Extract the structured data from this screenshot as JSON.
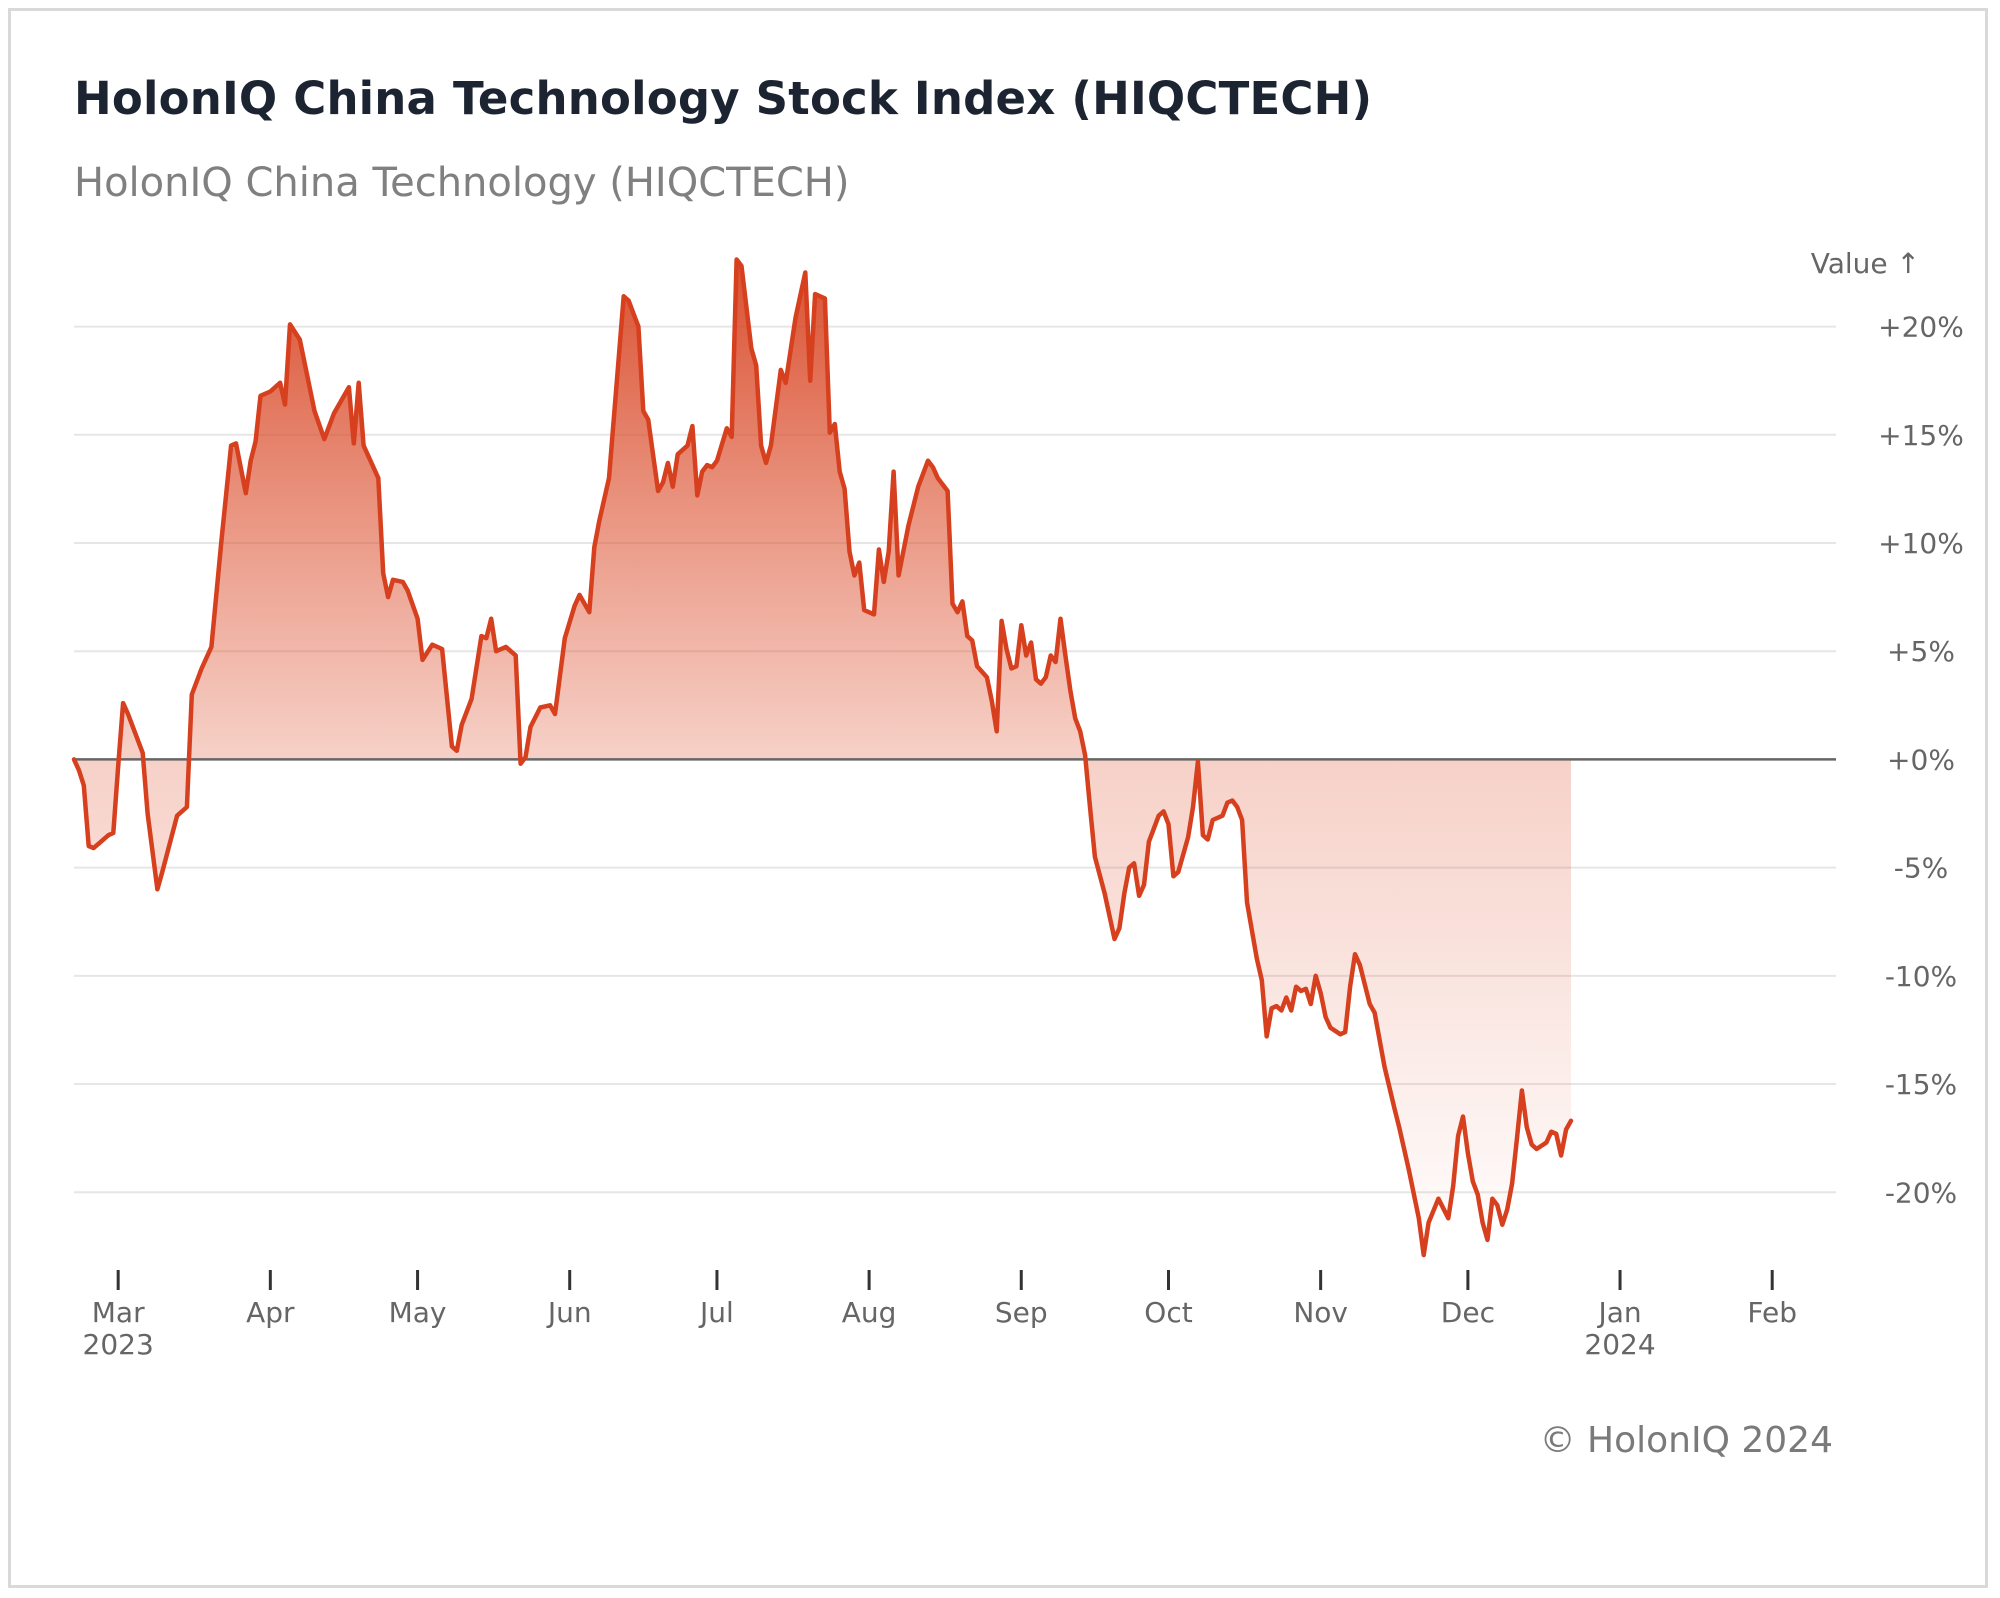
{
  "header": {
    "title": "HolonIQ China Technology Stock Index (HIQCTECH)",
    "subtitle": "HolonIQ China Technology (HIQCTECH)"
  },
  "footer": {
    "copyright": "© HolonIQ 2024"
  },
  "colors": {
    "line": "#d6401e",
    "fill": "#e05a3a",
    "baseline": "#666666",
    "grid": "#e6e6e6"
  },
  "chart_data": {
    "type": "area",
    "title": "HolonIQ China Technology Stock Index (HIQCTECH)",
    "subtitle": "HolonIQ China Technology (HIQCTECH)",
    "ylabel": "Value ↑",
    "y_tick_labels": [
      "+20%",
      "+15%",
      "+10%",
      "+5%",
      "+0%",
      "-5%",
      "-10%",
      "-15%",
      "-20%"
    ],
    "y_ticks": [
      20,
      15,
      10,
      5,
      0,
      -5,
      -10,
      -15,
      -20
    ],
    "ylim": [
      -23.5,
      24
    ],
    "x_ticks": [
      {
        "date": "2023-03-01",
        "label": "Mar",
        "sub": "2023"
      },
      {
        "date": "2023-04-01",
        "label": "Apr",
        "sub": ""
      },
      {
        "date": "2023-05-01",
        "label": "May",
        "sub": ""
      },
      {
        "date": "2023-06-01",
        "label": "Jun",
        "sub": ""
      },
      {
        "date": "2023-07-01",
        "label": "Jul",
        "sub": ""
      },
      {
        "date": "2023-08-01",
        "label": "Aug",
        "sub": ""
      },
      {
        "date": "2023-09-01",
        "label": "Sep",
        "sub": ""
      },
      {
        "date": "2023-10-01",
        "label": "Oct",
        "sub": ""
      },
      {
        "date": "2023-11-01",
        "label": "Nov",
        "sub": ""
      },
      {
        "date": "2023-12-01",
        "label": "Dec",
        "sub": ""
      },
      {
        "date": "2024-01-01",
        "label": "Jan",
        "sub": "2024"
      },
      {
        "date": "2024-02-01",
        "label": "Feb",
        "sub": ""
      }
    ],
    "xlim": [
      "2023-02-20",
      "2024-02-14"
    ],
    "baseline": 0,
    "grid": true,
    "series": [
      {
        "points": [
          [
            "2023-02-20",
            0.0
          ],
          [
            "2023-02-21",
            -0.5
          ],
          [
            "2023-02-22",
            -1.2
          ],
          [
            "2023-02-23",
            -4.0
          ],
          [
            "2023-02-24",
            -4.1
          ],
          [
            "2023-02-27",
            -3.5
          ],
          [
            "2023-02-28",
            -3.4
          ],
          [
            "2023-03-01",
            -0.3
          ],
          [
            "2023-03-02",
            2.6
          ],
          [
            "2023-03-03",
            2.1
          ],
          [
            "2023-03-06",
            0.3
          ],
          [
            "2023-03-07",
            -2.5
          ],
          [
            "2023-03-09",
            -6.0
          ],
          [
            "2023-03-10",
            -5.2
          ],
          [
            "2023-03-13",
            -2.6
          ],
          [
            "2023-03-15",
            -2.2
          ],
          [
            "2023-03-16",
            3.0
          ],
          [
            "2023-03-18",
            4.2
          ],
          [
            "2023-03-20",
            5.2
          ],
          [
            "2023-03-22",
            10.0
          ],
          [
            "2023-03-24",
            14.5
          ],
          [
            "2023-03-25",
            14.6
          ],
          [
            "2023-03-27",
            12.3
          ],
          [
            "2023-03-28",
            13.8
          ],
          [
            "2023-03-29",
            14.7
          ],
          [
            "2023-03-30",
            16.8
          ],
          [
            "2023-04-01",
            17.0
          ],
          [
            "2023-04-03",
            17.4
          ],
          [
            "2023-04-04",
            16.4
          ],
          [
            "2023-04-05",
            20.1
          ],
          [
            "2023-04-07",
            19.4
          ],
          [
            "2023-04-09",
            17.2
          ],
          [
            "2023-04-10",
            16.1
          ],
          [
            "2023-04-12",
            14.8
          ],
          [
            "2023-04-14",
            16.0
          ],
          [
            "2023-04-17",
            17.2
          ],
          [
            "2023-04-18",
            14.6
          ],
          [
            "2023-04-19",
            17.4
          ],
          [
            "2023-04-20",
            14.5
          ],
          [
            "2023-04-23",
            13.0
          ],
          [
            "2023-04-24",
            8.6
          ],
          [
            "2023-04-25",
            7.5
          ],
          [
            "2023-04-26",
            8.3
          ],
          [
            "2023-04-28",
            8.2
          ],
          [
            "2023-04-29",
            7.8
          ],
          [
            "2023-05-01",
            6.5
          ],
          [
            "2023-05-02",
            4.6
          ],
          [
            "2023-05-04",
            5.3
          ],
          [
            "2023-05-06",
            5.1
          ],
          [
            "2023-05-08",
            0.6
          ],
          [
            "2023-05-09",
            0.4
          ],
          [
            "2023-05-10",
            1.6
          ],
          [
            "2023-05-12",
            2.8
          ],
          [
            "2023-05-14",
            5.7
          ],
          [
            "2023-05-15",
            5.6
          ],
          [
            "2023-05-16",
            6.5
          ],
          [
            "2023-05-17",
            5.0
          ],
          [
            "2023-05-19",
            5.2
          ],
          [
            "2023-05-21",
            4.8
          ],
          [
            "2023-05-22",
            -0.2
          ],
          [
            "2023-05-23",
            0.1
          ],
          [
            "2023-05-24",
            1.5
          ],
          [
            "2023-05-26",
            2.4
          ],
          [
            "2023-05-28",
            2.5
          ],
          [
            "2023-05-29",
            2.1
          ],
          [
            "2023-05-31",
            5.6
          ],
          [
            "2023-06-02",
            7.1
          ],
          [
            "2023-06-03",
            7.6
          ],
          [
            "2023-06-05",
            6.8
          ],
          [
            "2023-06-06",
            9.8
          ],
          [
            "2023-06-07",
            11.0
          ],
          [
            "2023-06-09",
            13.0
          ],
          [
            "2023-06-12",
            21.4
          ],
          [
            "2023-06-13",
            21.2
          ],
          [
            "2023-06-15",
            20.0
          ],
          [
            "2023-06-16",
            16.1
          ],
          [
            "2023-06-17",
            15.7
          ],
          [
            "2023-06-19",
            12.4
          ],
          [
            "2023-06-20",
            12.8
          ],
          [
            "2023-06-21",
            13.7
          ],
          [
            "2023-06-22",
            12.6
          ],
          [
            "2023-06-23",
            14.1
          ],
          [
            "2023-06-25",
            14.5
          ],
          [
            "2023-06-26",
            15.4
          ],
          [
            "2023-06-27",
            12.2
          ],
          [
            "2023-06-28",
            13.3
          ],
          [
            "2023-06-29",
            13.6
          ],
          [
            "2023-06-30",
            13.5
          ],
          [
            "2023-07-01",
            13.8
          ],
          [
            "2023-07-03",
            15.3
          ],
          [
            "2023-07-04",
            14.9
          ],
          [
            "2023-07-05",
            23.1
          ],
          [
            "2023-07-06",
            22.8
          ],
          [
            "2023-07-08",
            19.0
          ],
          [
            "2023-07-09",
            18.2
          ],
          [
            "2023-07-10",
            14.5
          ],
          [
            "2023-07-11",
            13.7
          ],
          [
            "2023-07-12",
            14.5
          ],
          [
            "2023-07-14",
            18.0
          ],
          [
            "2023-07-15",
            17.4
          ],
          [
            "2023-07-17",
            20.4
          ],
          [
            "2023-07-19",
            22.5
          ],
          [
            "2023-07-20",
            17.5
          ],
          [
            "2023-07-21",
            21.5
          ],
          [
            "2023-07-23",
            21.3
          ],
          [
            "2023-07-24",
            15.1
          ],
          [
            "2023-07-25",
            15.5
          ],
          [
            "2023-07-26",
            13.3
          ],
          [
            "2023-07-27",
            12.5
          ],
          [
            "2023-07-28",
            9.6
          ],
          [
            "2023-07-29",
            8.5
          ],
          [
            "2023-07-30",
            9.1
          ],
          [
            "2023-07-31",
            6.9
          ],
          [
            "2023-08-02",
            6.7
          ],
          [
            "2023-08-03",
            9.7
          ],
          [
            "2023-08-04",
            8.2
          ],
          [
            "2023-08-05",
            9.6
          ],
          [
            "2023-08-06",
            13.3
          ],
          [
            "2023-08-07",
            8.5
          ],
          [
            "2023-08-09",
            10.8
          ],
          [
            "2023-08-11",
            12.6
          ],
          [
            "2023-08-13",
            13.8
          ],
          [
            "2023-08-14",
            13.5
          ],
          [
            "2023-08-15",
            13.0
          ],
          [
            "2023-08-17",
            12.4
          ],
          [
            "2023-08-18",
            7.2
          ],
          [
            "2023-08-19",
            6.8
          ],
          [
            "2023-08-20",
            7.3
          ],
          [
            "2023-08-21",
            5.7
          ],
          [
            "2023-08-22",
            5.5
          ],
          [
            "2023-08-23",
            4.3
          ],
          [
            "2023-08-25",
            3.8
          ],
          [
            "2023-08-26",
            2.7
          ],
          [
            "2023-08-27",
            1.3
          ],
          [
            "2023-08-28",
            6.4
          ],
          [
            "2023-08-29",
            5.1
          ],
          [
            "2023-08-30",
            4.2
          ],
          [
            "2023-08-31",
            4.3
          ],
          [
            "2023-09-01",
            6.2
          ],
          [
            "2023-09-02",
            4.8
          ],
          [
            "2023-09-03",
            5.4
          ],
          [
            "2023-09-04",
            3.7
          ],
          [
            "2023-09-05",
            3.5
          ],
          [
            "2023-09-06",
            3.8
          ],
          [
            "2023-09-07",
            4.8
          ],
          [
            "2023-09-08",
            4.5
          ],
          [
            "2023-09-09",
            6.5
          ],
          [
            "2023-09-10",
            4.8
          ],
          [
            "2023-09-11",
            3.2
          ],
          [
            "2023-09-12",
            1.9
          ],
          [
            "2023-09-13",
            1.3
          ],
          [
            "2023-09-14",
            0.2
          ],
          [
            "2023-09-15",
            -2.2
          ],
          [
            "2023-09-16",
            -4.5
          ],
          [
            "2023-09-18",
            -6.2
          ],
          [
            "2023-09-20",
            -8.3
          ],
          [
            "2023-09-21",
            -7.8
          ],
          [
            "2023-09-22",
            -6.2
          ],
          [
            "2023-09-23",
            -5.0
          ],
          [
            "2023-09-24",
            -4.8
          ],
          [
            "2023-09-25",
            -6.3
          ],
          [
            "2023-09-26",
            -5.8
          ],
          [
            "2023-09-27",
            -3.8
          ],
          [
            "2023-09-29",
            -2.6
          ],
          [
            "2023-09-30",
            -2.4
          ],
          [
            "2023-10-01",
            -3.0
          ],
          [
            "2023-10-02",
            -5.4
          ],
          [
            "2023-10-03",
            -5.2
          ],
          [
            "2023-10-05",
            -3.6
          ],
          [
            "2023-10-06",
            -2.2
          ],
          [
            "2023-10-07",
            -0.1
          ],
          [
            "2023-10-08",
            -3.5
          ],
          [
            "2023-10-09",
            -3.7
          ],
          [
            "2023-10-10",
            -2.8
          ],
          [
            "2023-10-12",
            -2.6
          ],
          [
            "2023-10-13",
            -2.0
          ],
          [
            "2023-10-14",
            -1.9
          ],
          [
            "2023-10-15",
            -2.2
          ],
          [
            "2023-10-16",
            -2.8
          ],
          [
            "2023-10-17",
            -6.6
          ],
          [
            "2023-10-19",
            -9.2
          ],
          [
            "2023-10-20",
            -10.2
          ],
          [
            "2023-10-21",
            -12.8
          ],
          [
            "2023-10-22",
            -11.5
          ],
          [
            "2023-10-23",
            -11.4
          ],
          [
            "2023-10-24",
            -11.6
          ],
          [
            "2023-10-25",
            -11.0
          ],
          [
            "2023-10-26",
            -11.6
          ],
          [
            "2023-10-27",
            -10.5
          ],
          [
            "2023-10-28",
            -10.7
          ],
          [
            "2023-10-29",
            -10.6
          ],
          [
            "2023-10-30",
            -11.3
          ],
          [
            "2023-10-31",
            -10.0
          ],
          [
            "2023-11-01",
            -10.8
          ],
          [
            "2023-11-02",
            -11.9
          ],
          [
            "2023-11-03",
            -12.4
          ],
          [
            "2023-11-05",
            -12.7
          ],
          [
            "2023-11-06",
            -12.6
          ],
          [
            "2023-11-07",
            -10.5
          ],
          [
            "2023-11-08",
            -9.0
          ],
          [
            "2023-11-09",
            -9.5
          ],
          [
            "2023-11-11",
            -11.3
          ],
          [
            "2023-11-12",
            -11.7
          ],
          [
            "2023-11-14",
            -14.2
          ],
          [
            "2023-11-16",
            -16.1
          ],
          [
            "2023-11-17",
            -17.0
          ],
          [
            "2023-11-19",
            -19.0
          ],
          [
            "2023-11-21",
            -21.2
          ],
          [
            "2023-11-22",
            -22.9
          ],
          [
            "2023-11-23",
            -21.4
          ],
          [
            "2023-11-25",
            -20.3
          ],
          [
            "2023-11-27",
            -21.2
          ],
          [
            "2023-11-28",
            -19.7
          ],
          [
            "2023-11-29",
            -17.4
          ],
          [
            "2023-11-30",
            -16.5
          ],
          [
            "2023-12-01",
            -18.2
          ],
          [
            "2023-12-02",
            -19.5
          ],
          [
            "2023-12-03",
            -20.1
          ],
          [
            "2023-12-04",
            -21.4
          ],
          [
            "2023-12-05",
            -22.2
          ],
          [
            "2023-12-06",
            -20.3
          ],
          [
            "2023-12-07",
            -20.6
          ],
          [
            "2023-12-08",
            -21.5
          ],
          [
            "2023-12-09",
            -20.8
          ],
          [
            "2023-12-10",
            -19.6
          ],
          [
            "2023-12-11",
            -17.5
          ],
          [
            "2023-12-12",
            -15.3
          ],
          [
            "2023-12-13",
            -17.0
          ],
          [
            "2023-12-14",
            -17.8
          ],
          [
            "2023-12-15",
            -18.0
          ],
          [
            "2023-12-17",
            -17.7
          ],
          [
            "2023-12-18",
            -17.2
          ],
          [
            "2023-12-19",
            -17.3
          ],
          [
            "2023-12-20",
            -18.3
          ],
          [
            "2023-12-21",
            -17.1
          ],
          [
            "2023-12-22",
            -16.7
          ]
        ]
      }
    ]
  }
}
